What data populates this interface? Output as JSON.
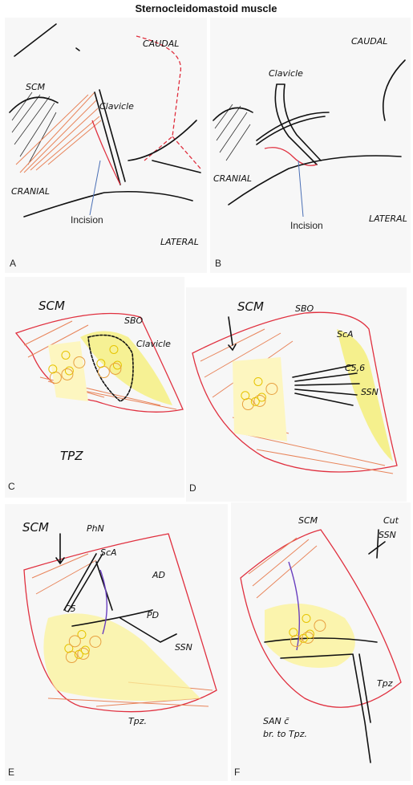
{
  "header": {
    "title": "Sternocleidomastoid muscle"
  },
  "panels": [
    {
      "label": "A",
      "annotations": [
        "SCM",
        "Clavicle",
        "CAUDAL",
        "CRANIAL",
        "LATERAL",
        "Incision"
      ]
    },
    {
      "label": "B",
      "annotations": [
        "CAUDAL",
        "Clavicle",
        "CRANIAL",
        "LATERAL",
        "Incision"
      ]
    },
    {
      "label": "C",
      "annotations": [
        "SCM",
        "SBO",
        "Clavicle",
        "TPZ"
      ]
    },
    {
      "label": "D",
      "annotations": [
        "SCM",
        "SBO",
        "ScA",
        "C5,6",
        "SSN"
      ]
    },
    {
      "label": "E",
      "annotations": [
        "SCM",
        "PhN",
        "ScA",
        "AD",
        "PD",
        "C5",
        "SSN",
        "Tpz."
      ]
    },
    {
      "label": "F",
      "annotations": [
        "SCM",
        "Cut",
        "SSN",
        "SAN c̄",
        "br. to Tpz.",
        "Tpz"
      ]
    }
  ]
}
